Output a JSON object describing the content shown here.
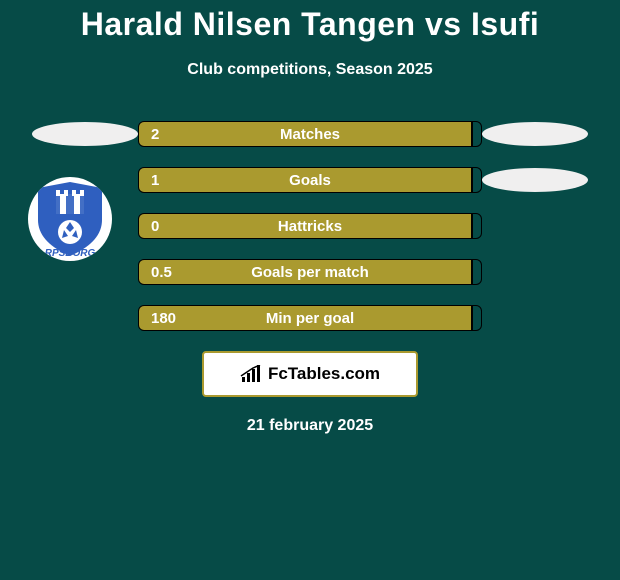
{
  "title": "Harald Nilsen Tangen vs Isufi",
  "subtitle": "Club competitions, Season 2025",
  "colors": {
    "bg": "#064b47",
    "bar_left": "#aa9a2f",
    "bar_right": "#064b47",
    "border": "#000000",
    "ellipse": "#f0efef",
    "text": "#ffffff"
  },
  "rows": [
    {
      "label": "Matches",
      "left_value": "2",
      "left_pct": 97,
      "right_pct": 3,
      "left_ellipse": true,
      "right_ellipse": true
    },
    {
      "label": "Goals",
      "left_value": "1",
      "left_pct": 97,
      "right_pct": 3,
      "left_ellipse": false,
      "right_ellipse": true
    },
    {
      "label": "Hattricks",
      "left_value": "0",
      "left_pct": 97,
      "right_pct": 3,
      "left_ellipse": false,
      "right_ellipse": false
    },
    {
      "label": "Goals per match",
      "left_value": "0.5",
      "left_pct": 97,
      "right_pct": 3,
      "left_ellipse": false,
      "right_ellipse": false
    },
    {
      "label": "Min per goal",
      "left_value": "180",
      "left_pct": 97,
      "right_pct": 3,
      "left_ellipse": false,
      "right_ellipse": false
    }
  ],
  "brand": {
    "text": "FcTables.com",
    "border_color": "#aa9a2f"
  },
  "date": "21 february 2025",
  "club": {
    "shield_color": "#2f5fbf",
    "shield_text": "RPSBORG",
    "shield_text_color": "#2f5fbf"
  }
}
